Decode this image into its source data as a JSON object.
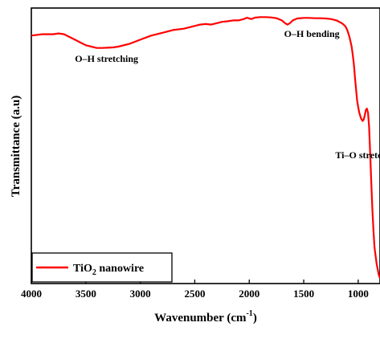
{
  "chart_data": {
    "type": "line",
    "xlabel": "Wavenumber (cm",
    "xlabel_sup": "-1",
    "xlabel_close": ")",
    "ylabel": "Transmittance (a.u)",
    "xlim": [
      4000,
      800
    ],
    "x_reversed": true,
    "ylim": [
      0,
      1
    ],
    "y_ticks_shown": false,
    "x_ticks": [
      4000,
      3500,
      3000,
      2500,
      2000,
      1500,
      1000
    ],
    "grid": false,
    "legend_position": "bottom-left",
    "line_color": "#ff0000",
    "series": [
      {
        "name_main": "TiO",
        "name_sub": "2",
        "name_rest": " nanowire",
        "x": [
          4000,
          3900,
          3800,
          3750,
          3700,
          3650,
          3600,
          3550,
          3500,
          3450,
          3400,
          3350,
          3300,
          3250,
          3200,
          3100,
          3000,
          2900,
          2800,
          2700,
          2600,
          2500,
          2450,
          2400,
          2350,
          2300,
          2250,
          2200,
          2150,
          2100,
          2050,
          2020,
          2000,
          1980,
          1950,
          1900,
          1850,
          1800,
          1750,
          1700,
          1670,
          1650,
          1630,
          1600,
          1560,
          1500,
          1450,
          1400,
          1350,
          1300,
          1250,
          1200,
          1150,
          1120,
          1100,
          1080,
          1060,
          1050,
          1040,
          1030,
          1020,
          1010,
          1000,
          990,
          975,
          960,
          950,
          940,
          930,
          920,
          910,
          900,
          890,
          880,
          870,
          860,
          850,
          830,
          810,
          800
        ],
        "y": [
          0.9,
          0.905,
          0.905,
          0.908,
          0.905,
          0.895,
          0.885,
          0.875,
          0.865,
          0.86,
          0.855,
          0.855,
          0.856,
          0.857,
          0.86,
          0.87,
          0.885,
          0.9,
          0.91,
          0.92,
          0.925,
          0.935,
          0.94,
          0.942,
          0.94,
          0.945,
          0.95,
          0.952,
          0.955,
          0.955,
          0.96,
          0.965,
          0.962,
          0.96,
          0.965,
          0.967,
          0.967,
          0.966,
          0.963,
          0.955,
          0.945,
          0.94,
          0.944,
          0.955,
          0.962,
          0.964,
          0.964,
          0.963,
          0.963,
          0.962,
          0.96,
          0.955,
          0.945,
          0.935,
          0.92,
          0.895,
          0.86,
          0.83,
          0.795,
          0.75,
          0.705,
          0.665,
          0.64,
          0.62,
          0.6,
          0.59,
          0.595,
          0.61,
          0.63,
          0.635,
          0.62,
          0.57,
          0.47,
          0.37,
          0.27,
          0.19,
          0.13,
          0.07,
          0.03,
          0.02
        ]
      }
    ],
    "annotations": [
      {
        "id": "oh-stretch",
        "text": "O–H stretching",
        "x": 3600,
        "y": 0.805
      },
      {
        "id": "oh-bend",
        "text": "O–H bending",
        "x": 1680,
        "y": 0.895
      },
      {
        "id": "tio-stretch",
        "text": "Ti–O stretching",
        "x": 1210,
        "y": 0.455
      }
    ]
  }
}
